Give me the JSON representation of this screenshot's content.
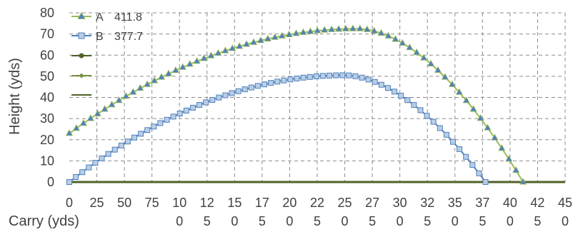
{
  "chart_data": {
    "type": "line",
    "xlabel": "Carry (yds)",
    "ylabel": "Height (yds)",
    "xlim": [
      0,
      450
    ],
    "ylim": [
      0,
      80
    ],
    "grid": true,
    "x_ticks": [
      {
        "top": "0",
        "bottom": ""
      },
      {
        "top": "25",
        "bottom": ""
      },
      {
        "top": "50",
        "bottom": ""
      },
      {
        "top": "75",
        "bottom": ""
      },
      {
        "top": "10",
        "bottom": "0"
      },
      {
        "top": "12",
        "bottom": "5"
      },
      {
        "top": "15",
        "bottom": "0"
      },
      {
        "top": "17",
        "bottom": "5"
      },
      {
        "top": "20",
        "bottom": "0"
      },
      {
        "top": "22",
        "bottom": "5"
      },
      {
        "top": "25",
        "bottom": "0"
      },
      {
        "top": "27",
        "bottom": "5"
      },
      {
        "top": "30",
        "bottom": "0"
      },
      {
        "top": "32",
        "bottom": "5"
      },
      {
        "top": "35",
        "bottom": "0"
      },
      {
        "top": "37",
        "bottom": "5"
      },
      {
        "top": "40",
        "bottom": "0"
      },
      {
        "top": "42",
        "bottom": "5"
      },
      {
        "top": "45",
        "bottom": "0"
      }
    ],
    "y_ticks": [
      "0",
      "10",
      "20",
      "30",
      "40",
      "50",
      "60",
      "70",
      "80"
    ],
    "legend_position": "top-left",
    "series": [
      {
        "name": "A",
        "value_label": "411.8",
        "marker": "triangle",
        "color": "#9bbb59",
        "marker_color": "#4f81bd",
        "start_height": 23,
        "apex_x": 262,
        "apex_height": 72.5,
        "end_x": 411.8
      },
      {
        "name": "B",
        "value_label": "377.7",
        "marker": "square",
        "color": "#4f81bd",
        "marker_color": "#b9cde5",
        "start_height": 0,
        "apex_x": 250,
        "apex_height": 50.5,
        "end_x": 377.7
      }
    ],
    "empty_legend_entries": [
      {
        "marker": "circle",
        "color": "#4f6228"
      },
      {
        "marker": "diamond",
        "color": "#76923c"
      },
      {
        "marker": "none",
        "color": "#4f6228"
      }
    ]
  }
}
